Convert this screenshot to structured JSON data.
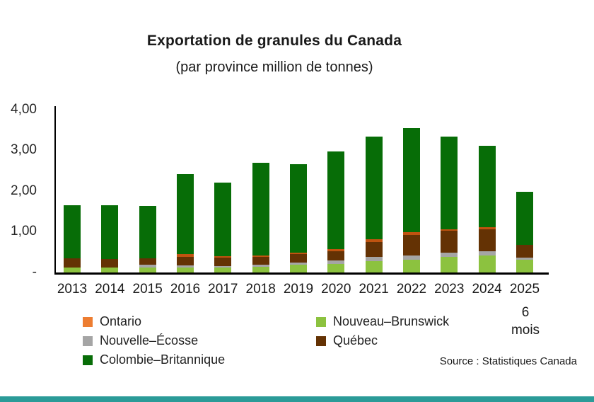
{
  "title": "Exportation de granules du Canada",
  "subtitle": "(par province million de tonnes)",
  "source": "Source : Statistiques Canada",
  "footer_bar_color": "#2B9B98",
  "y_axis": {
    "tick_labels": [
      "4,00",
      "3,00",
      "2,00",
      "1,00",
      "-"
    ],
    "tick_values": [
      4.0,
      3.0,
      2.0,
      1.0,
      0.0
    ]
  },
  "x_axis": {
    "labels": [
      "2013",
      "2014",
      "2015",
      "2016",
      "2017",
      "2018",
      "2019",
      "2020",
      "2021",
      "2022",
      "2023",
      "2024",
      "2025"
    ],
    "last_label_note_lines": [
      "6",
      "mois"
    ]
  },
  "legend": {
    "column1": [
      {
        "label": "Ontario",
        "color": "#ED7D31"
      },
      {
        "label": "Nouvelle–Écosse",
        "color": "#A5A5A5"
      },
      {
        "label": "Colombie–Britannique",
        "color": "#076D07"
      }
    ],
    "column2": [
      {
        "label": "Nouveau–Brunswick",
        "color": "#8CC23F"
      },
      {
        "label": "Québec",
        "color": "#643204"
      }
    ]
  },
  "chart_data": {
    "type": "bar",
    "stacked": true,
    "title": "Exportation de granules du Canada",
    "subtitle": "(par province million de tonnes)",
    "categories": [
      "2013",
      "2014",
      "2015",
      "2016",
      "2017",
      "2018",
      "2019",
      "2020",
      "2021",
      "2022",
      "2023",
      "2024",
      "2025"
    ],
    "category_note": {
      "category": "2025",
      "note": "6 mois"
    },
    "unit": "million de tonnes",
    "ylim": [
      0,
      4.0
    ],
    "y_ticks": [
      0,
      1.0,
      2.0,
      3.0,
      4.0
    ],
    "grid": false,
    "legend_position": "bottom",
    "stack_order": "bottom_to_top",
    "series": [
      {
        "name": "Nouveau–Brunswick",
        "color": "#8CC23F",
        "values": [
          0.12,
          0.12,
          0.13,
          0.12,
          0.13,
          0.14,
          0.19,
          0.2,
          0.27,
          0.31,
          0.38,
          0.42,
          0.32
        ]
      },
      {
        "name": "Nouvelle–Écosse",
        "color": "#A5A5A5",
        "values": [
          0.0,
          0.0,
          0.07,
          0.06,
          0.04,
          0.06,
          0.06,
          0.09,
          0.1,
          0.1,
          0.1,
          0.1,
          0.06
        ]
      },
      {
        "name": "Québec",
        "color": "#643204",
        "values": [
          0.23,
          0.21,
          0.16,
          0.21,
          0.2,
          0.19,
          0.2,
          0.22,
          0.36,
          0.51,
          0.54,
          0.54,
          0.32
        ]
      },
      {
        "name": "Ontario",
        "color": "#ED7D31",
        "bar_color": "#C05310",
        "values": [
          0.0,
          0.0,
          0.0,
          0.07,
          0.04,
          0.04,
          0.04,
          0.05,
          0.07,
          0.07,
          0.04,
          0.05,
          0.0
        ]
      },
      {
        "name": "Colombie–Britannique",
        "color": "#076D07",
        "values": [
          1.3,
          1.32,
          1.29,
          1.96,
          1.8,
          2.27,
          2.17,
          2.39,
          2.52,
          2.55,
          2.27,
          1.99,
          1.3
        ]
      }
    ],
    "totals": [
      1.65,
      1.65,
      1.65,
      2.42,
      2.21,
      2.7,
      2.66,
      2.95,
      3.32,
      3.54,
      3.33,
      3.1,
      2.0
    ]
  }
}
